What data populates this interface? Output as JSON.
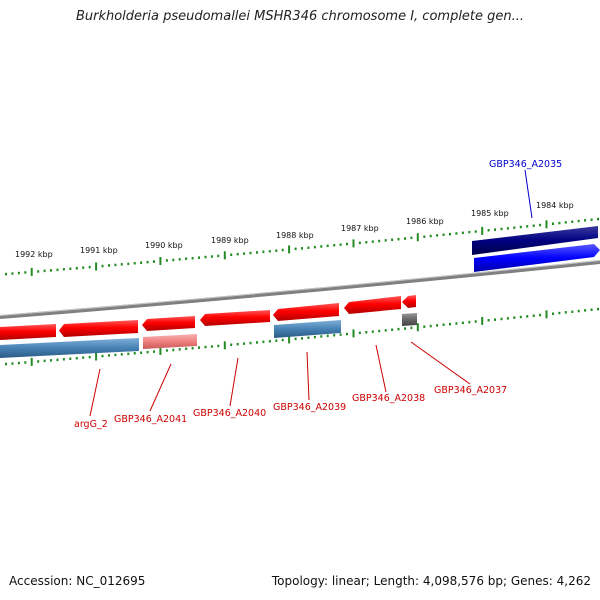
{
  "title": "Burkholderia pseudomallei MSHR346 chromosome I, complete gen...",
  "footer": {
    "accession": "Accession: NC_012695",
    "summary": "Topology: linear; Length: 4,098,576 bp; Genes: 4,262"
  },
  "scale": {
    "tick_labels": [
      "1992 kbp",
      "1991 kbp",
      "1990 kbp",
      "1989 kbp",
      "1988 kbp",
      "1987 kbp",
      "1986 kbp",
      "1985 kbp",
      "1984 kbp"
    ]
  },
  "genes": [
    {
      "label": "GBP346_A2035",
      "color": "#0000cc"
    },
    {
      "label": "argG_2",
      "color": "#cc0000"
    },
    {
      "label": "GBP346_A2041",
      "color": "#cc0000"
    },
    {
      "label": "GBP346_A2040",
      "color": "#cc0000"
    },
    {
      "label": "GBP346_A2039",
      "color": "#cc0000"
    },
    {
      "label": "GBP346_A2038",
      "color": "#cc0000"
    },
    {
      "label": "GBP346_A2037",
      "color": "#cc0000"
    }
  ],
  "colors": {
    "forward_feature": "#0000ff",
    "forward_feature_dark": "#000080",
    "reverse_feature": "#ff0000",
    "reverse_feature_light": "#f08080",
    "reverse_cds_blue": "#4682b4",
    "small_feature": "#666666",
    "axis": "#808080",
    "ticks": "#228b22"
  }
}
